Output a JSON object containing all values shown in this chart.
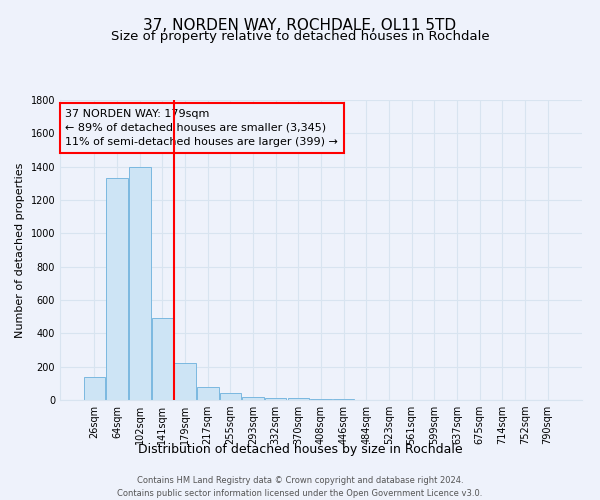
{
  "title": "37, NORDEN WAY, ROCHDALE, OL11 5TD",
  "subtitle": "Size of property relative to detached houses in Rochdale",
  "xlabel": "Distribution of detached houses by size in Rochdale",
  "ylabel": "Number of detached properties",
  "bar_labels": [
    "26sqm",
    "64sqm",
    "102sqm",
    "141sqm",
    "179sqm",
    "217sqm",
    "255sqm",
    "293sqm",
    "332sqm",
    "370sqm",
    "408sqm",
    "446sqm",
    "484sqm",
    "523sqm",
    "561sqm",
    "599sqm",
    "637sqm",
    "675sqm",
    "714sqm",
    "752sqm",
    "790sqm"
  ],
  "bar_values": [
    140,
    1330,
    1400,
    490,
    225,
    80,
    40,
    20,
    15,
    10,
    5,
    5,
    0,
    0,
    0,
    0,
    0,
    0,
    0,
    0,
    0
  ],
  "bar_color": "#cde4f5",
  "bar_edgecolor": "#7ab8e0",
  "red_line_x": 3.5,
  "ylim": [
    0,
    1800
  ],
  "yticks": [
    0,
    200,
    400,
    600,
    800,
    1000,
    1200,
    1400,
    1600,
    1800
  ],
  "annotation_title": "37 NORDEN WAY: 179sqm",
  "annotation_line1": "← 89% of detached houses are smaller (3,345)",
  "annotation_line2": "11% of semi-detached houses are larger (399) →",
  "footnote1": "Contains HM Land Registry data © Crown copyright and database right 2024.",
  "footnote2": "Contains public sector information licensed under the Open Government Licence v3.0.",
  "background_color": "#eef2fb",
  "grid_color": "#d8e4f0",
  "title_fontsize": 11,
  "subtitle_fontsize": 9.5,
  "xlabel_fontsize": 9,
  "ylabel_fontsize": 8,
  "tick_fontsize": 7,
  "annot_fontsize": 8,
  "footnote_fontsize": 6
}
